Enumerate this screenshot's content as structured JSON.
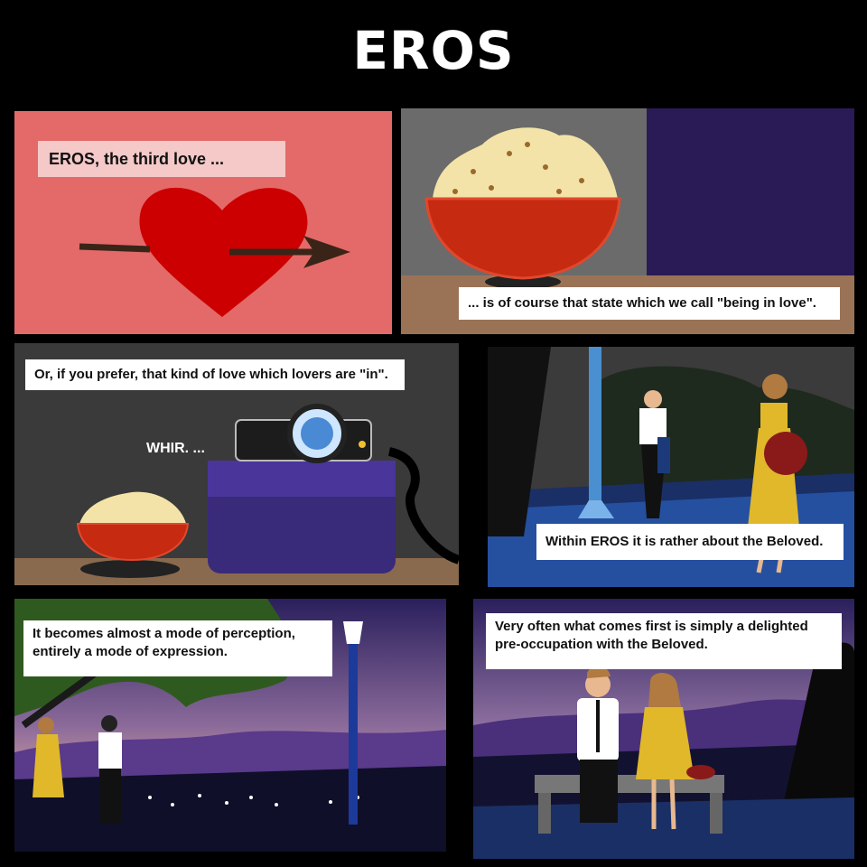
{
  "title": "EROS",
  "panels": [
    {
      "caption": "EROS, the third love ..."
    },
    {
      "caption": "... is of course that state which we call \"being in love\"."
    },
    {
      "caption": "Or, if you prefer, that kind of love which lovers are \"in\".",
      "sfx": "WHIR. ..."
    },
    {
      "caption": "Within EROS it is rather about the Beloved."
    },
    {
      "caption_line1": "It becomes almost a mode of perception,",
      "caption_line2": "entirely a mode of expression."
    },
    {
      "caption_line1": "Very often what comes first is simply a delighted",
      "caption_line2": "pre-occupation with the Beloved."
    }
  ],
  "colors": {
    "panel1_bg": "#e36a68",
    "heart": "#cc0000",
    "bowl": "#c62a10",
    "projector_table": "#3a2a7a",
    "night_sky": "#2a1f5c",
    "dusk": "#e6a8a0"
  }
}
